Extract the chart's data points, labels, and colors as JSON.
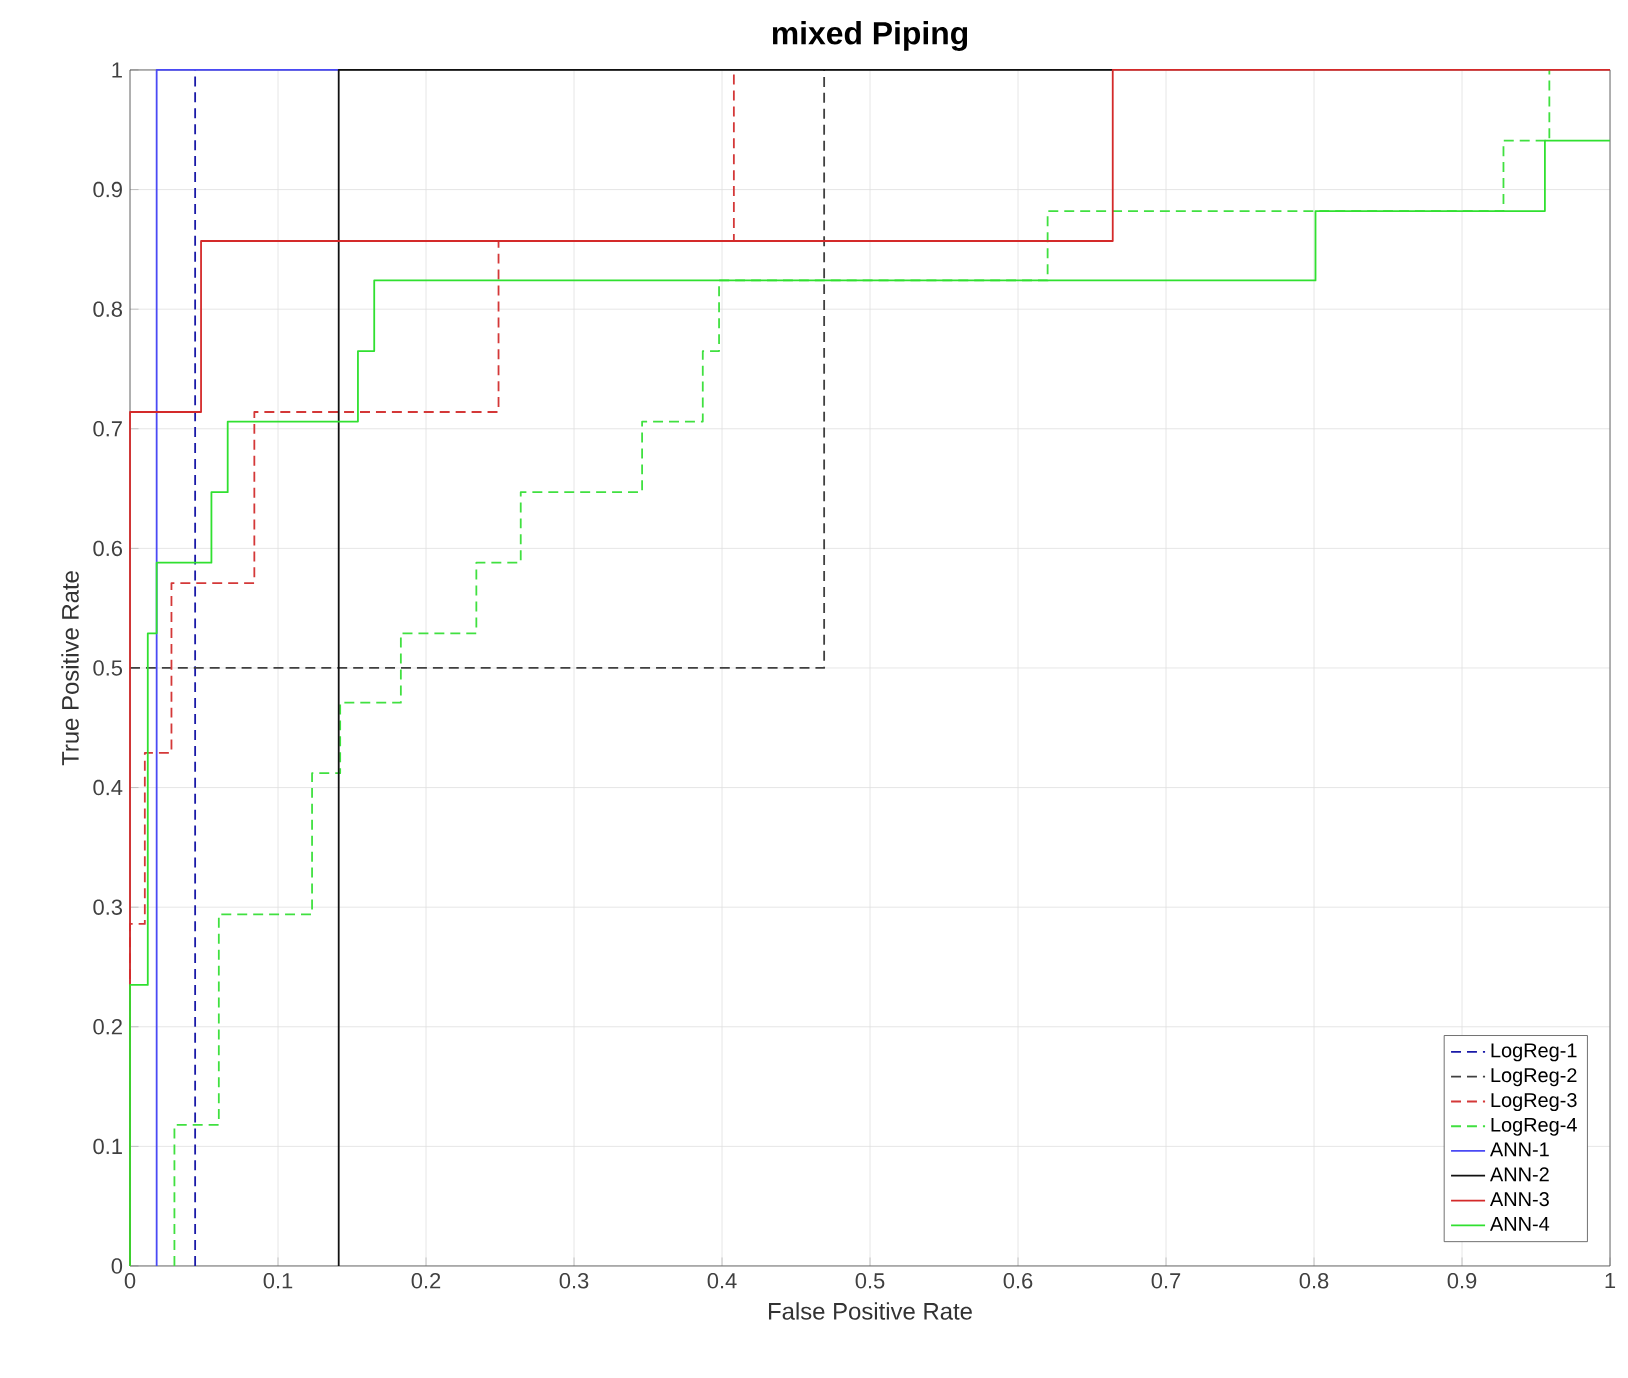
{
  "chart_data": {
    "type": "line",
    "title": "mixed Piping",
    "xlabel": "False Positive Rate",
    "ylabel": "True Positive Rate",
    "xlim": [
      0,
      1
    ],
    "ylim": [
      0,
      1
    ],
    "xticks": [
      0,
      0.1,
      0.2,
      0.3,
      0.4,
      0.5,
      0.6,
      0.7,
      0.8,
      0.9,
      1
    ],
    "yticks": [
      0,
      0.1,
      0.2,
      0.3,
      0.4,
      0.5,
      0.6,
      0.7,
      0.8,
      0.9,
      1
    ],
    "grid": true,
    "legend": "bottom right",
    "marker": "none",
    "series": [
      {
        "name": "LogReg-1",
        "color": "#1a1aa8",
        "line_style": "dashed",
        "x": [
          0.044,
          0.044
        ],
        "values": [
          0,
          1
        ]
      },
      {
        "name": "LogReg-2",
        "color": "#404040",
        "line_style": "dashed",
        "x": [
          0,
          0.469,
          0.469
        ],
        "values": [
          0.5,
          0.5,
          1
        ]
      },
      {
        "name": "LogReg-3",
        "color": "#d43838",
        "line_style": "dashed",
        "x": [
          0,
          0,
          0.01,
          0.01,
          0.028,
          0.028,
          0.084,
          0.084,
          0.249,
          0.249,
          0.408,
          0.408
        ],
        "values": [
          0,
          0.286,
          0.286,
          0.429,
          0.429,
          0.571,
          0.571,
          0.714,
          0.714,
          0.857,
          0.857,
          1
        ]
      },
      {
        "name": "LogReg-4",
        "color": "#40e040",
        "line_style": "dashed",
        "x": [
          0.03,
          0.03,
          0.06,
          0.06,
          0.123,
          0.123,
          0.142,
          0.142,
          0.183,
          0.183,
          0.234,
          0.234,
          0.264,
          0.264,
          0.346,
          0.346,
          0.387,
          0.387,
          0.398,
          0.398,
          0.62,
          0.62,
          0.928,
          0.928,
          0.959,
          0.959
        ],
        "values": [
          0,
          0.118,
          0.118,
          0.294,
          0.294,
          0.412,
          0.412,
          0.471,
          0.471,
          0.529,
          0.529,
          0.588,
          0.588,
          0.647,
          0.647,
          0.706,
          0.706,
          0.765,
          0.765,
          0.824,
          0.824,
          0.882,
          0.882,
          0.941,
          0.941,
          1
        ]
      },
      {
        "name": "ANN-1",
        "color": "#4a4af5",
        "line_style": "solid",
        "x": [
          0.018,
          0.018,
          0.141
        ],
        "values": [
          0,
          1,
          1
        ]
      },
      {
        "name": "ANN-2",
        "color": "#111111",
        "line_style": "solid",
        "x": [
          0.141,
          0.141,
          0.664
        ],
        "values": [
          0,
          1,
          1
        ]
      },
      {
        "name": "ANN-3",
        "color": "#d42a2a",
        "line_style": "solid",
        "x": [
          0,
          0,
          0.048,
          0.048,
          0.664,
          0.664,
          1
        ],
        "values": [
          0,
          0.714,
          0.714,
          0.857,
          0.857,
          1,
          1
        ]
      },
      {
        "name": "ANN-4",
        "color": "#30e030",
        "line_style": "solid",
        "x": [
          0,
          0,
          0.012,
          0.012,
          0.018,
          0.018,
          0.055,
          0.055,
          0.066,
          0.066,
          0.154,
          0.154,
          0.165,
          0.165,
          0.801,
          0.801,
          0.956,
          0.956,
          1
        ],
        "values": [
          0,
          0.235,
          0.235,
          0.529,
          0.529,
          0.588,
          0.588,
          0.647,
          0.647,
          0.706,
          0.706,
          0.765,
          0.765,
          0.824,
          0.824,
          0.882,
          0.882,
          0.941,
          0.941
        ]
      }
    ]
  }
}
